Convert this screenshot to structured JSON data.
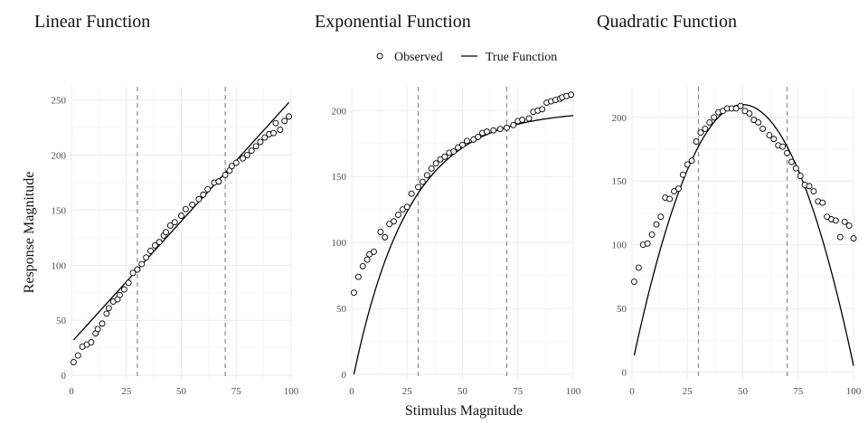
{
  "legend": {
    "observed_label": "Observed",
    "true_label": "True Function"
  },
  "axes": {
    "xlabel": "Stimulus Magnitude",
    "ylabel": "Response Magnitude"
  },
  "chart_data": [
    {
      "type": "scatter",
      "title": "Linear Function",
      "xlim": [
        0,
        100
      ],
      "ylim": [
        -4,
        262
      ],
      "x_ticks": [
        0,
        25,
        50,
        75,
        100
      ],
      "y_ticks": [
        0,
        50,
        100,
        150,
        200,
        250
      ],
      "reference_lines_x": [
        30,
        70
      ],
      "grid": true,
      "series": [
        {
          "name": "Observed",
          "kind": "points",
          "x": [
            1,
            3,
            5,
            7,
            9,
            11,
            12,
            14,
            16,
            17,
            19,
            21,
            22,
            24,
            26,
            28,
            30,
            32,
            34,
            36,
            38,
            40,
            42,
            43,
            45,
            47,
            50,
            52,
            55,
            58,
            60,
            62,
            65,
            67,
            70,
            72,
            73,
            75,
            78,
            80,
            82,
            84,
            86,
            88,
            90,
            92,
            93,
            95,
            97,
            99
          ],
          "y": [
            12,
            18,
            26,
            28,
            30,
            38,
            42,
            47,
            56,
            61,
            67,
            69,
            73,
            78,
            84,
            93,
            96,
            101,
            107,
            113,
            118,
            121,
            127,
            130,
            136,
            139,
            145,
            151,
            155,
            160,
            164,
            169,
            175,
            176,
            182,
            186,
            190,
            193,
            197,
            200,
            204,
            208,
            212,
            216,
            219,
            220,
            229,
            223,
            231,
            235
          ]
        },
        {
          "name": "True Function",
          "kind": "line",
          "function": "linear",
          "params": {
            "intercept": 30,
            "slope": 2.2
          },
          "x_range": [
            1,
            99
          ]
        }
      ]
    },
    {
      "type": "scatter",
      "title": "Exponential Function",
      "xlim": [
        0,
        100
      ],
      "ylim": [
        -4,
        218
      ],
      "x_ticks": [
        0,
        25,
        50,
        75,
        100
      ],
      "y_ticks": [
        0,
        50,
        100,
        150,
        200
      ],
      "reference_lines_x": [
        30,
        70
      ],
      "grid": true,
      "series": [
        {
          "name": "Observed",
          "kind": "points",
          "x": [
            1,
            3,
            5,
            7,
            8,
            10,
            13,
            15,
            17,
            19,
            21,
            23,
            25,
            27,
            30,
            32,
            34,
            36,
            38,
            40,
            42,
            44,
            46,
            48,
            50,
            52,
            55,
            57,
            59,
            61,
            64,
            67,
            70,
            73,
            75,
            77,
            80,
            82,
            84,
            86,
            88,
            90,
            92,
            94,
            95,
            97,
            99
          ],
          "y": [
            62,
            74,
            82,
            87,
            91,
            93,
            108,
            104,
            114,
            116,
            121,
            125,
            127,
            137,
            142,
            146,
            151,
            156,
            160,
            163,
            165,
            168,
            169,
            172,
            174,
            177,
            178,
            180,
            183,
            184,
            185,
            186,
            187,
            189,
            192,
            193,
            194,
            199,
            200,
            201,
            206,
            207,
            208,
            209,
            210,
            211,
            212
          ]
        },
        {
          "name": "True Function",
          "kind": "line",
          "function": "exponential_saturation",
          "params": {
            "asymptote": 200,
            "scale": 208,
            "rate": 0.04
          },
          "x_range": [
            1,
            100
          ]
        }
      ]
    },
    {
      "type": "scatter",
      "title": "Quadratic Function",
      "xlim": [
        0,
        100
      ],
      "ylim": [
        -6,
        224
      ],
      "x_ticks": [
        0,
        25,
        50,
        75,
        100
      ],
      "y_ticks": [
        0,
        50,
        100,
        150,
        200
      ],
      "reference_lines_x": [
        30,
        70
      ],
      "grid": true,
      "series": [
        {
          "name": "Observed",
          "kind": "points",
          "x": [
            1,
            3,
            5,
            7,
            9,
            11,
            13,
            15,
            17,
            19,
            21,
            23,
            25,
            27,
            29,
            31,
            33,
            35,
            37,
            39,
            41,
            43,
            45,
            47,
            49,
            51,
            53,
            55,
            57,
            59,
            62,
            64,
            66,
            68,
            70,
            72,
            74,
            76,
            78,
            80,
            82,
            84,
            86,
            88,
            90,
            92,
            94,
            96,
            98,
            100
          ],
          "y": [
            71,
            82,
            100,
            101,
            108,
            116,
            122,
            137,
            136,
            142,
            144,
            155,
            163,
            166,
            181,
            188,
            191,
            196,
            200,
            204,
            205,
            207,
            207,
            207,
            209,
            205,
            203,
            198,
            196,
            191,
            186,
            183,
            178,
            177,
            172,
            165,
            160,
            154,
            147,
            146,
            142,
            134,
            133,
            122,
            120,
            119,
            106,
            118,
            115,
            105
          ]
        },
        {
          "name": "True Function",
          "kind": "line",
          "function": "quadratic",
          "params": {
            "peak": 210,
            "vertex": 50,
            "curvature": 0.082
          },
          "x_range": [
            1,
            100
          ]
        }
      ]
    }
  ]
}
